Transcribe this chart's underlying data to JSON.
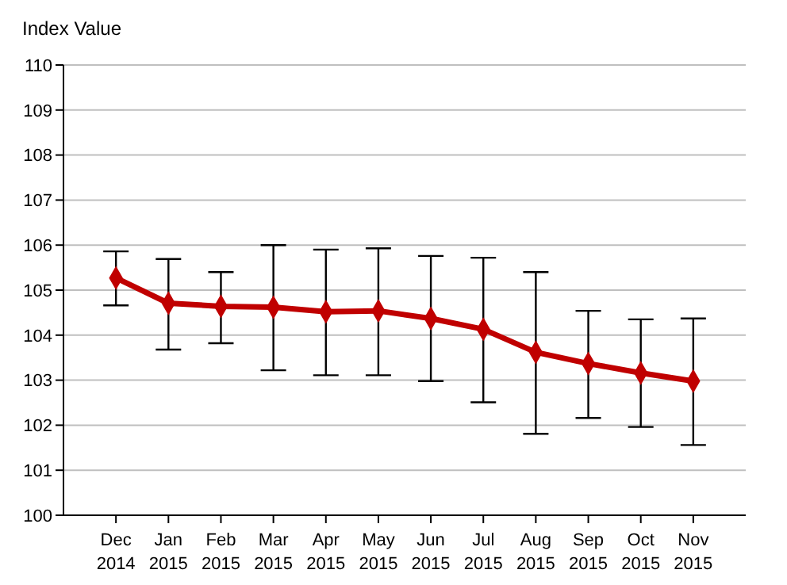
{
  "chart_data": {
    "type": "line",
    "ylabel": "Index Value",
    "categories": [
      "Dec 2014",
      "Jan 2015",
      "Feb 2015",
      "Mar 2015",
      "Apr 2015",
      "May 2015",
      "Jun 2015",
      "Jul 2015",
      "Aug 2015",
      "Sep 2015",
      "Oct 2015",
      "Nov 2015"
    ],
    "series": [
      {
        "color": "#c00000",
        "values": [
          105.27,
          104.71,
          104.64,
          104.62,
          104.52,
          104.54,
          104.37,
          104.13,
          103.62,
          103.37,
          103.16,
          102.98
        ],
        "errors": [
          [
            104.66,
            105.86
          ],
          [
            103.68,
            105.69
          ],
          [
            103.82,
            105.4
          ],
          [
            103.22,
            106.0
          ],
          [
            103.11,
            105.9
          ],
          [
            103.11,
            105.93
          ],
          [
            102.98,
            105.76
          ],
          [
            102.51,
            105.72
          ],
          [
            101.81,
            105.4
          ],
          [
            102.16,
            104.54
          ],
          [
            101.96,
            104.35
          ],
          [
            101.56,
            104.37
          ]
        ]
      }
    ],
    "ylim": [
      100,
      110
    ],
    "yticks": [
      100,
      101,
      102,
      103,
      104,
      105,
      106,
      107,
      108,
      109,
      110
    ],
    "grid": "y",
    "marker": "diamond",
    "line_style": "solid"
  }
}
